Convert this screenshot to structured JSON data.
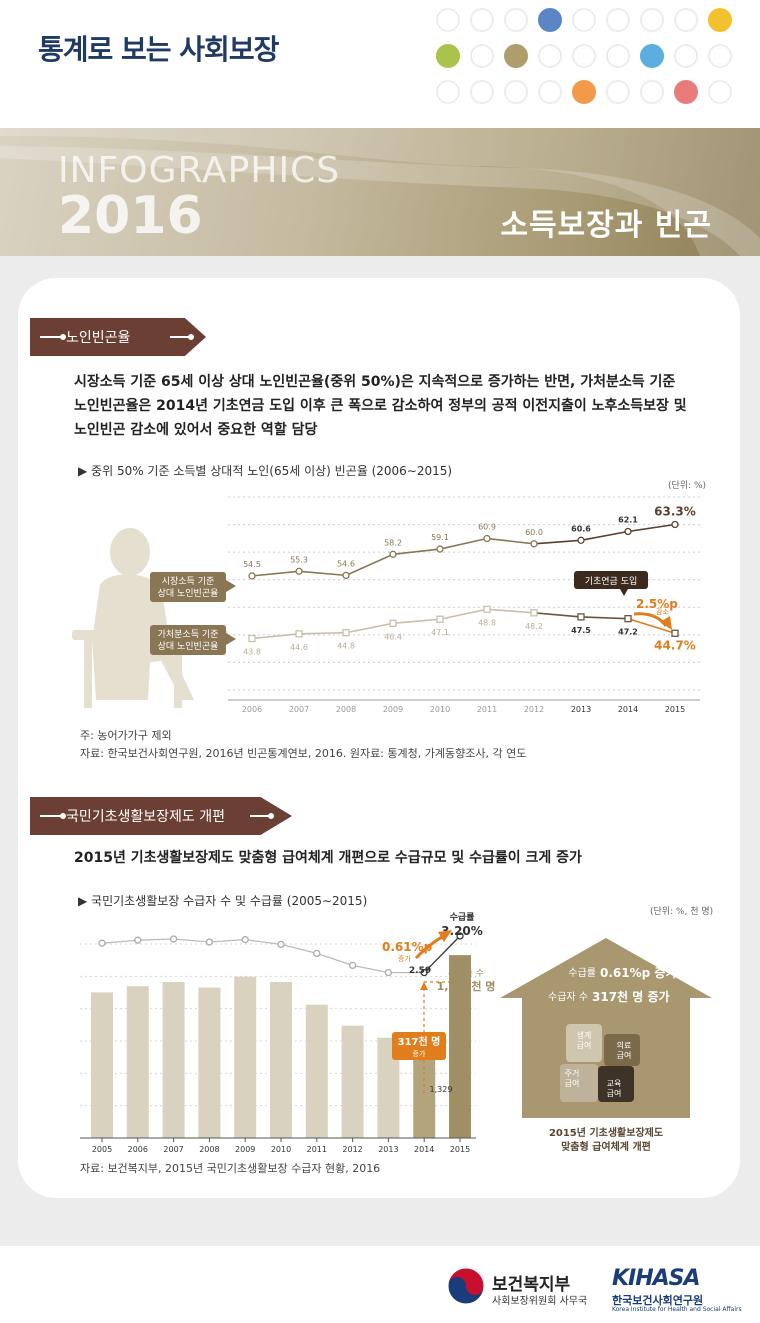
{
  "header": {
    "title": "통계로 보는 사회보장",
    "dot_colors": [
      "#5a86c6",
      "#f2c12e",
      "#a9c44a",
      "#b09d6e",
      "#5aaee0",
      "#f19a4a",
      "#ea7b7b"
    ]
  },
  "banner": {
    "infographics": "INFOGRAPHICS",
    "year": "2016",
    "topic": "소득보장과 빈곤"
  },
  "section1": {
    "ribbon": "노인빈곤율",
    "paragraph": [
      "시장소득 기준 65세 이상 상대 노인빈곤율(중위 50%)은 지속적으로 증가하는 반면, 가처분소득 기준",
      "노인빈곤율은 2014년 기초연금 도입 이후 큰 폭으로 감소하여 정부의 공적 이전지출이 노후소득보장 및",
      "노인빈곤 감소에 있어서 중요한 역할 담당"
    ],
    "chart_title": "▶ 중위 50% 기준 소득별 상대적 노인(65세 이상) 빈곤율 (2006∼2015)",
    "unit": "(단위: %)",
    "label_market": [
      "시장소득 기준",
      "상대 노인빈곤율"
    ],
    "label_disposable": [
      "가처분소득 기준",
      "상대 노인빈곤율"
    ],
    "callout": "기초연금 도입",
    "decrease_value": "2.5%p",
    "decrease_label": "감소",
    "note": "주:  농어가가구 제외",
    "source": "자료:  한국보건사회연구원, 2016년 빈곤통계연보, 2016. 원자료: 통계청, 가계동향조사, 각 연도"
  },
  "section2": {
    "ribbon": "국민기초생활보장제도 개편",
    "paragraph": "2015년 기초생활보장제도 맞춤형 급여체계 개편으로 수급규모 및 수급률이 크게 증가",
    "chart_title": "▶ 국민기초생활보장 수급자 수 및 수급률 (2005∼2015)",
    "unit": "(단위: %, 천 명)",
    "rate_label": [
      "수급률",
      "3.20%"
    ],
    "rate_increase": "0.61%p",
    "rate_increase_label": "증가",
    "rate_2014": "2.59",
    "count_label": [
      "수급자 수",
      "1,646천 명"
    ],
    "count_2014": "1,329",
    "count_increase": "317천 명",
    "count_increase_label": "증가",
    "source": "자료: 보건복지부, 2015년 국민기초생활보장 수급자 현황, 2016",
    "house": {
      "line1_label": "수급률",
      "line1_value": "0.61%p 증가",
      "line2_label": "수급자 수",
      "line2_value": "317천 명 증가",
      "pieces": [
        [
          "생계",
          "급여"
        ],
        [
          "의료",
          "급여"
        ],
        [
          "주거",
          "급여"
        ],
        [
          "교육",
          "급여"
        ]
      ],
      "caption": [
        "2015년 기초생활보장제도",
        "맞춤형 급여체계 개편"
      ]
    }
  },
  "chart_data": [
    {
      "type": "line",
      "x": [
        "2006",
        "2007",
        "2008",
        "2009",
        "2010",
        "2011",
        "2012",
        "2013",
        "2014",
        "2015"
      ],
      "series": [
        {
          "name": "시장소득 기준 상대 노인빈곤율",
          "values": [
            54.5,
            55.3,
            54.6,
            58.2,
            59.1,
            60.9,
            60.0,
            60.6,
            62.1,
            63.3
          ],
          "labels": [
            "54.5",
            "55.3",
            "54.6",
            "58.2",
            "59.1",
            "60.9",
            "60.0",
            "60.6",
            "62.1",
            "63.3%"
          ]
        },
        {
          "name": "가처분소득 기준 상대 노인빈곤율",
          "values": [
            43.8,
            44.6,
            44.8,
            46.4,
            47.1,
            48.8,
            48.2,
            47.5,
            47.2,
            44.7
          ],
          "labels": [
            "43.8",
            "44.6",
            "44.8",
            "46.4",
            "47.1",
            "48.8",
            "48.2",
            "47.5",
            "47.2",
            "44.7%"
          ]
        }
      ],
      "colors": {
        "market": "#8a7654",
        "disposable": "#c9c0aa",
        "highlight": "#e07d1c"
      }
    },
    {
      "type": "bar",
      "categories": [
        "2005",
        "2006",
        "2007",
        "2008",
        "2009",
        "2010",
        "2011",
        "2012",
        "2013",
        "2014",
        "2015"
      ],
      "bar_values": [
        1513,
        1535,
        1550,
        1530,
        1569,
        1550,
        1469,
        1394,
        1351,
        1329,
        1646
      ],
      "line_values": [
        3.08,
        3.13,
        3.15,
        3.1,
        3.14,
        3.06,
        2.91,
        2.71,
        2.59,
        2.59,
        3.2
      ],
      "colors": {
        "bar": "#d9d2be",
        "bar_2014": "#b3a47e",
        "bar_2015": "#a08e64",
        "line": "#bbbbbb"
      }
    }
  ]
}
